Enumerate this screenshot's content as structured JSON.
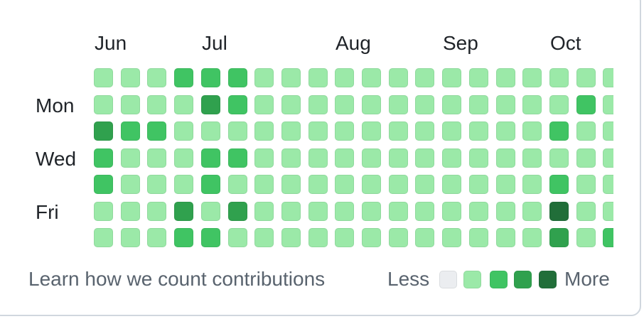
{
  "months": [
    "Jun",
    "Jul",
    "Aug",
    "Sep",
    "Oct"
  ],
  "weekdays": [
    "Mon",
    "Wed",
    "Fri"
  ],
  "levels": {
    "0": "#ebedf0",
    "1": "#9be9a8",
    "2": "#40c463",
    "3": "#30a14e",
    "4": "#216e39"
  },
  "grid_levels": [
    [
      1,
      1,
      1,
      2,
      2,
      2,
      1,
      1,
      1,
      1,
      1,
      1,
      1,
      1,
      1,
      1,
      1,
      1,
      1,
      1
    ],
    [
      1,
      1,
      1,
      1,
      3,
      2,
      1,
      1,
      1,
      1,
      1,
      1,
      1,
      1,
      1,
      1,
      1,
      1,
      2,
      1
    ],
    [
      3,
      2,
      2,
      1,
      1,
      1,
      1,
      1,
      1,
      1,
      1,
      1,
      1,
      1,
      1,
      1,
      1,
      2,
      1,
      1
    ],
    [
      2,
      1,
      1,
      1,
      2,
      2,
      1,
      1,
      1,
      1,
      1,
      1,
      1,
      1,
      1,
      1,
      1,
      1,
      1,
      1
    ],
    [
      2,
      1,
      1,
      1,
      2,
      1,
      1,
      1,
      1,
      1,
      1,
      1,
      1,
      1,
      1,
      1,
      1,
      2,
      1,
      1
    ],
    [
      1,
      1,
      1,
      3,
      1,
      3,
      1,
      1,
      1,
      1,
      1,
      1,
      1,
      1,
      1,
      1,
      1,
      4,
      1,
      1
    ],
    [
      1,
      1,
      1,
      2,
      2,
      1,
      1,
      1,
      1,
      1,
      1,
      1,
      1,
      1,
      1,
      1,
      1,
      3,
      1,
      2
    ]
  ],
  "footer": {
    "learn_link": "Learn how we count contributions",
    "less": "Less",
    "more": "More"
  }
}
